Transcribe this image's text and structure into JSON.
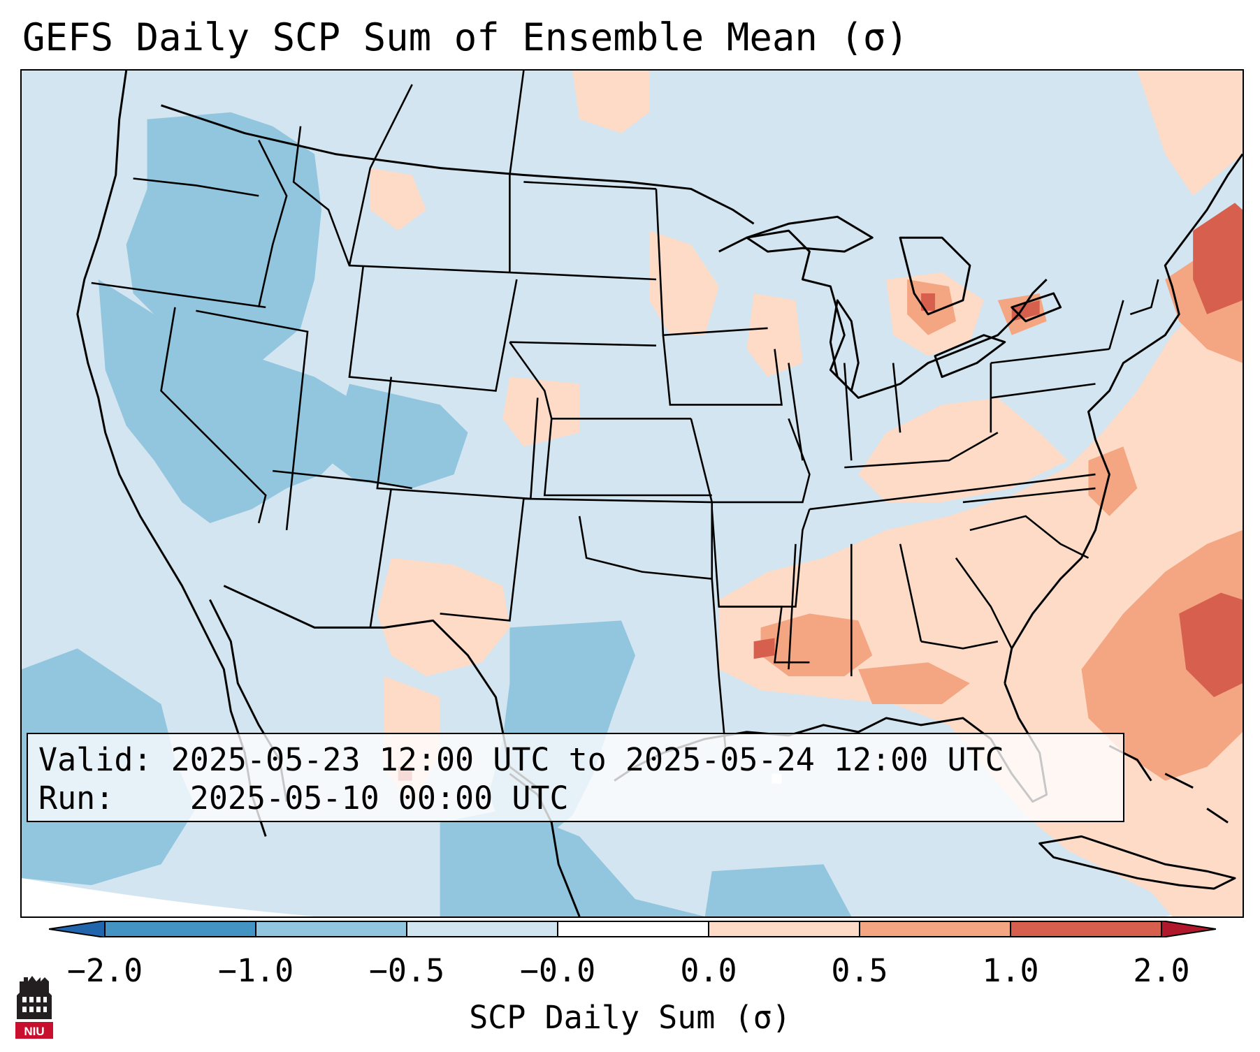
{
  "title": "GEFS Daily SCP Sum of Ensemble Mean (σ)",
  "info": {
    "valid_label": "Valid:",
    "valid_text": "2025-05-23 12:00 UTC to 2025-05-24 12:00 UTC",
    "run_label": "Run:",
    "run_text": "2025-05-10 00:00 UTC"
  },
  "colorbar": {
    "label": "SCP Daily Sum (σ)",
    "ticks": [
      "−2.0",
      "−1.0",
      "−0.5",
      "−0.0",
      "0.0",
      "0.5",
      "1.0",
      "2.0"
    ],
    "colors": [
      "#4393c3",
      "#92c5de",
      "#d1e5f0",
      "#ffffff",
      "#fddbc7",
      "#f4a582",
      "#d6604d"
    ],
    "extend_low_color": "#2166ac",
    "extend_high_color": "#b2182b"
  },
  "logo": {
    "text": "NIU",
    "color": "#c8102e"
  }
}
